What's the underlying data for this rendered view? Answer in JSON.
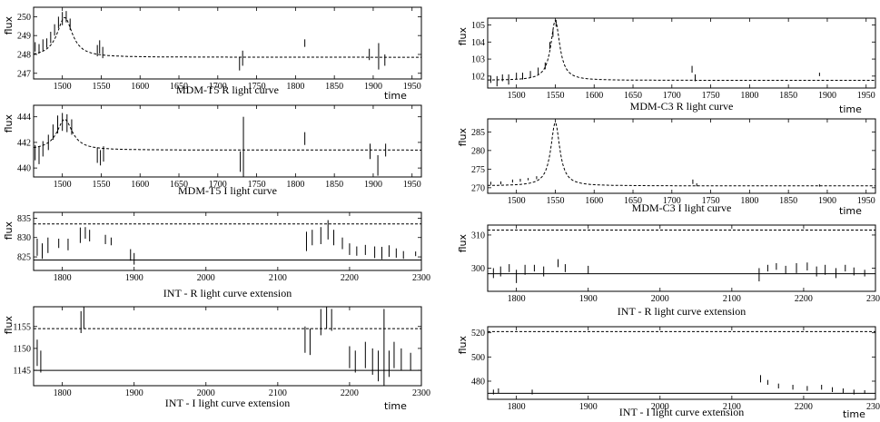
{
  "chart_data": [
    {
      "type": "line",
      "title": "MDM-T5 R light curve",
      "ylabel": "flux",
      "xlabel": "time",
      "xlim": [
        1463,
        1962
      ],
      "ylim": [
        246.7,
        250.5
      ],
      "xticks": [
        1500,
        1550,
        1600,
        1650,
        1700,
        1750,
        1800,
        1850,
        1900,
        1950
      ],
      "yticks": [
        247,
        248,
        249,
        250
      ],
      "model": {
        "kind": "peak",
        "t0": 1503,
        "base": 247.85,
        "amp": 2.1,
        "width": 12,
        "style": "dashed"
      },
      "observations": [
        {
          "x": 1465,
          "y": 248.4,
          "err": 0.25
        },
        {
          "x": 1470,
          "y": 248.3,
          "err": 0.25
        },
        {
          "x": 1475,
          "y": 248.5,
          "err": 0.3
        },
        {
          "x": 1480,
          "y": 248.6,
          "err": 0.25
        },
        {
          "x": 1485,
          "y": 248.9,
          "err": 0.3
        },
        {
          "x": 1490,
          "y": 249.3,
          "err": 0.3
        },
        {
          "x": 1495,
          "y": 249.7,
          "err": 0.3
        },
        {
          "x": 1500,
          "y": 249.9,
          "err": 0.35
        },
        {
          "x": 1505,
          "y": 250.0,
          "err": 0.3
        },
        {
          "x": 1510,
          "y": 249.6,
          "err": 0.3
        },
        {
          "x": 1545,
          "y": 248.2,
          "err": 0.3
        },
        {
          "x": 1548,
          "y": 248.4,
          "err": 0.35
        },
        {
          "x": 1552,
          "y": 248.1,
          "err": 0.3
        },
        {
          "x": 1728,
          "y": 247.5,
          "err": 0.35
        },
        {
          "x": 1732,
          "y": 247.8,
          "err": 0.4
        },
        {
          "x": 1812,
          "y": 248.6,
          "err": 0.2
        },
        {
          "x": 1895,
          "y": 248.0,
          "err": 0.3
        },
        {
          "x": 1907,
          "y": 247.9,
          "err": 0.7
        },
        {
          "x": 1915,
          "y": 247.7,
          "err": 0.3
        }
      ]
    },
    {
      "type": "line",
      "title": "MDM-T5 I light curve",
      "ylabel": "flux",
      "xlabel": "",
      "xlim": [
        1463,
        1962
      ],
      "ylim": [
        439.3,
        444.9
      ],
      "xticks": [
        1500,
        1550,
        1600,
        1650,
        1700,
        1750,
        1800,
        1850,
        1900,
        1950
      ],
      "yticks": [
        440,
        442,
        444
      ],
      "model": {
        "kind": "peak",
        "t0": 1503,
        "base": 441.4,
        "amp": 2.4,
        "width": 12,
        "style": "dashed"
      },
      "observations": [
        {
          "x": 1465,
          "y": 441.2,
          "err": 0.6
        },
        {
          "x": 1470,
          "y": 441.0,
          "err": 0.7
        },
        {
          "x": 1475,
          "y": 441.5,
          "err": 0.6
        },
        {
          "x": 1482,
          "y": 442.0,
          "err": 0.6
        },
        {
          "x": 1488,
          "y": 442.8,
          "err": 0.6
        },
        {
          "x": 1494,
          "y": 443.4,
          "err": 0.7
        },
        {
          "x": 1500,
          "y": 443.6,
          "err": 0.7
        },
        {
          "x": 1506,
          "y": 443.5,
          "err": 0.7
        },
        {
          "x": 1512,
          "y": 443.2,
          "err": 0.6
        },
        {
          "x": 1545,
          "y": 441.0,
          "err": 0.6
        },
        {
          "x": 1549,
          "y": 440.8,
          "err": 0.6
        },
        {
          "x": 1553,
          "y": 441.1,
          "err": 0.6
        },
        {
          "x": 1729,
          "y": 440.5,
          "err": 0.8
        },
        {
          "x": 1733,
          "y": 441.6,
          "err": 2.4
        },
        {
          "x": 1812,
          "y": 442.3,
          "err": 0.5
        },
        {
          "x": 1896,
          "y": 441.3,
          "err": 0.6
        },
        {
          "x": 1906,
          "y": 440.2,
          "err": 0.8
        },
        {
          "x": 1916,
          "y": 441.4,
          "err": 0.5
        }
      ]
    },
    {
      "type": "line",
      "title": "INT - R light curve extension",
      "ylabel": "flux",
      "xlabel": "",
      "xlim": [
        1760,
        2300
      ],
      "ylim": [
        821.5,
        836.5
      ],
      "xticks": [
        1800,
        1900,
        2000,
        2100,
        2200,
        2300
      ],
      "yticks": [
        825,
        830,
        835
      ],
      "reference_lines": [
        {
          "y": 833.5,
          "style": "dashed"
        },
        {
          "y": 824.2,
          "style": "solid"
        }
      ],
      "observations": [
        {
          "x": 1765,
          "y": 827.5,
          "err": 2.2
        },
        {
          "x": 1772,
          "y": 826.5,
          "err": 2.0
        },
        {
          "x": 1780,
          "y": 828.0,
          "err": 2.0
        },
        {
          "x": 1795,
          "y": 828.5,
          "err": 1.2
        },
        {
          "x": 1808,
          "y": 828.2,
          "err": 1.5
        },
        {
          "x": 1825,
          "y": 830.6,
          "err": 2.0
        },
        {
          "x": 1832,
          "y": 831.2,
          "err": 1.5
        },
        {
          "x": 1838,
          "y": 830.5,
          "err": 1.5
        },
        {
          "x": 1860,
          "y": 829.5,
          "err": 1.2
        },
        {
          "x": 1868,
          "y": 829.0,
          "err": 1.0
        },
        {
          "x": 1895,
          "y": 825.5,
          "err": 1.5
        },
        {
          "x": 1900,
          "y": 824.5,
          "err": 1.5
        },
        {
          "x": 2140,
          "y": 829.0,
          "err": 2.5
        },
        {
          "x": 2148,
          "y": 830.0,
          "err": 2.0
        },
        {
          "x": 2160,
          "y": 830.5,
          "err": 2.2
        },
        {
          "x": 2170,
          "y": 832.0,
          "err": 2.5
        },
        {
          "x": 2178,
          "y": 830.0,
          "err": 2.0
        },
        {
          "x": 2190,
          "y": 828.5,
          "err": 1.5
        },
        {
          "x": 2200,
          "y": 827.0,
          "err": 1.5
        },
        {
          "x": 2210,
          "y": 826.5,
          "err": 1.2
        },
        {
          "x": 2222,
          "y": 826.8,
          "err": 1.3
        },
        {
          "x": 2235,
          "y": 826.2,
          "err": 1.5
        },
        {
          "x": 2245,
          "y": 826.0,
          "err": 1.6
        },
        {
          "x": 2255,
          "y": 826.5,
          "err": 1.5
        },
        {
          "x": 2265,
          "y": 826.0,
          "err": 1.2
        },
        {
          "x": 2275,
          "y": 825.5,
          "err": 1.0
        },
        {
          "x": 2292,
          "y": 825.8,
          "err": 0.6
        }
      ]
    },
    {
      "type": "line",
      "title": "INT - I light curve extension",
      "ylabel": "flux",
      "xlabel": "time",
      "xlim": [
        1760,
        2300
      ],
      "ylim": [
        1141.5,
        1159.5
      ],
      "xticks": [
        1800,
        1900,
        2000,
        2100,
        2200,
        2300
      ],
      "yticks": [
        1145,
        1150,
        1155
      ],
      "reference_lines": [
        {
          "y": 1154.5,
          "style": "dashed"
        },
        {
          "y": 1145.0,
          "style": "solid"
        }
      ],
      "observations": [
        {
          "x": 1765,
          "y": 1149.0,
          "err": 3.0
        },
        {
          "x": 1770,
          "y": 1147.0,
          "err": 2.5
        },
        {
          "x": 1826,
          "y": 1156.0,
          "err": 2.5
        },
        {
          "x": 1830,
          "y": 1157.0,
          "err": 2.5
        },
        {
          "x": 2138,
          "y": 1152.0,
          "err": 3.0
        },
        {
          "x": 2145,
          "y": 1151.5,
          "err": 3.0
        },
        {
          "x": 2160,
          "y": 1156.0,
          "err": 3.0
        },
        {
          "x": 2168,
          "y": 1157.0,
          "err": 2.5
        },
        {
          "x": 2175,
          "y": 1156.5,
          "err": 2.5
        },
        {
          "x": 2200,
          "y": 1148.0,
          "err": 2.5
        },
        {
          "x": 2208,
          "y": 1147.0,
          "err": 2.5
        },
        {
          "x": 2222,
          "y": 1148.5,
          "err": 3.0
        },
        {
          "x": 2232,
          "y": 1147.0,
          "err": 3.0
        },
        {
          "x": 2240,
          "y": 1146.0,
          "err": 3.5
        },
        {
          "x": 2248,
          "y": 1150.0,
          "err": 9.0
        },
        {
          "x": 2255,
          "y": 1146.5,
          "err": 3.0
        },
        {
          "x": 2262,
          "y": 1148.5,
          "err": 3.0
        },
        {
          "x": 2272,
          "y": 1147.5,
          "err": 2.5
        },
        {
          "x": 2285,
          "y": 1147.0,
          "err": 2.0
        }
      ]
    },
    {
      "type": "line",
      "title": "MDM-C3 R light curve",
      "ylabel": "flux",
      "xlabel": "time",
      "xlim": [
        1463,
        1962
      ],
      "ylim": [
        101.3,
        105.4
      ],
      "xticks": [
        1500,
        1550,
        1600,
        1650,
        1700,
        1750,
        1800,
        1850,
        1900,
        1950
      ],
      "yticks": [
        102,
        103,
        104,
        105
      ],
      "model": {
        "kind": "peak",
        "t0": 1550,
        "base": 101.75,
        "amp": 3.5,
        "width": 7,
        "style": "dashed"
      },
      "observations": [
        {
          "x": 1467,
          "y": 101.8,
          "err": 0.2
        },
        {
          "x": 1475,
          "y": 101.7,
          "err": 0.3
        },
        {
          "x": 1482,
          "y": 101.9,
          "err": 0.2
        },
        {
          "x": 1490,
          "y": 101.8,
          "err": 0.3
        },
        {
          "x": 1500,
          "y": 102.0,
          "err": 0.2
        },
        {
          "x": 1508,
          "y": 102.0,
          "err": 0.2
        },
        {
          "x": 1518,
          "y": 102.1,
          "err": 0.2
        },
        {
          "x": 1528,
          "y": 102.3,
          "err": 0.2
        },
        {
          "x": 1537,
          "y": 102.6,
          "err": 0.2
        },
        {
          "x": 1543,
          "y": 103.8,
          "err": 0.2
        },
        {
          "x": 1547,
          "y": 104.5,
          "err": 0.2
        },
        {
          "x": 1551,
          "y": 105.1,
          "err": 0.2
        },
        {
          "x": 1726,
          "y": 102.4,
          "err": 0.2
        },
        {
          "x": 1730,
          "y": 101.9,
          "err": 0.2
        },
        {
          "x": 1890,
          "y": 102.1,
          "err": 0.1
        }
      ]
    },
    {
      "type": "line",
      "title": "MDM-C3 I light curve",
      "ylabel": "flux",
      "xlabel": "time",
      "xlim": [
        1463,
        1962
      ],
      "ylim": [
        268.5,
        288.5
      ],
      "xticks": [
        1500,
        1550,
        1600,
        1650,
        1700,
        1750,
        1800,
        1850,
        1900,
        1950
      ],
      "yticks": [
        270,
        275,
        280,
        285
      ],
      "model": {
        "kind": "peak",
        "t0": 1550,
        "base": 270.5,
        "amp": 17,
        "width": 7,
        "style": "dashed"
      },
      "observations": [
        {
          "x": 1467,
          "y": 271.2,
          "err": 0.4
        },
        {
          "x": 1480,
          "y": 271.3,
          "err": 0.4
        },
        {
          "x": 1495,
          "y": 271.8,
          "err": 0.4
        },
        {
          "x": 1505,
          "y": 272.0,
          "err": 0.4
        },
        {
          "x": 1515,
          "y": 272.3,
          "err": 0.3
        },
        {
          "x": 1526,
          "y": 272.7,
          "err": 0.4
        },
        {
          "x": 1727,
          "y": 271.6,
          "err": 0.6
        },
        {
          "x": 1732,
          "y": 270.8,
          "err": 0.4
        },
        {
          "x": 1890,
          "y": 270.6,
          "err": 0.3
        }
      ]
    },
    {
      "type": "line",
      "title": "INT - R light curve extension",
      "ylabel": "flux",
      "xlabel": "",
      "xlim": [
        1760,
        2300
      ],
      "ylim": [
        293,
        313
      ],
      "xticks": [
        1800,
        1900,
        2000,
        2100,
        2200,
        2300
      ],
      "yticks": [
        300,
        310
      ],
      "reference_lines": [
        {
          "y": 311.5,
          "style": "dashed"
        },
        {
          "y": 298.3,
          "style": "solid"
        }
      ],
      "observations": [
        {
          "x": 1768,
          "y": 298.5,
          "err": 1.5
        },
        {
          "x": 1778,
          "y": 299.0,
          "err": 1.5
        },
        {
          "x": 1790,
          "y": 300.0,
          "err": 1.2
        },
        {
          "x": 1800,
          "y": 297.5,
          "err": 2.0
        },
        {
          "x": 1812,
          "y": 299.5,
          "err": 1.5
        },
        {
          "x": 1825,
          "y": 300.0,
          "err": 1.0
        },
        {
          "x": 1838,
          "y": 299.0,
          "err": 1.5
        },
        {
          "x": 1858,
          "y": 301.5,
          "err": 1.2
        },
        {
          "x": 1868,
          "y": 300.0,
          "err": 1.2
        },
        {
          "x": 1900,
          "y": 299.5,
          "err": 1.2
        },
        {
          "x": 2138,
          "y": 298.0,
          "err": 2.0
        },
        {
          "x": 2150,
          "y": 300.0,
          "err": 1.0
        },
        {
          "x": 2162,
          "y": 300.5,
          "err": 1.0
        },
        {
          "x": 2175,
          "y": 299.5,
          "err": 1.2
        },
        {
          "x": 2190,
          "y": 300.0,
          "err": 1.5
        },
        {
          "x": 2205,
          "y": 300.5,
          "err": 1.2
        },
        {
          "x": 2218,
          "y": 299.0,
          "err": 1.5
        },
        {
          "x": 2230,
          "y": 299.5,
          "err": 1.5
        },
        {
          "x": 2245,
          "y": 298.5,
          "err": 1.5
        },
        {
          "x": 2258,
          "y": 300.0,
          "err": 1.0
        },
        {
          "x": 2270,
          "y": 299.0,
          "err": 1.2
        },
        {
          "x": 2285,
          "y": 298.5,
          "err": 1.0
        }
      ]
    },
    {
      "type": "line",
      "title": "INT - I light curve extension",
      "ylabel": "flux",
      "xlabel": "time",
      "xlim": [
        1760,
        2300
      ],
      "ylim": [
        465,
        525
      ],
      "xticks": [
        1800,
        1900,
        2000,
        2100,
        2200,
        2300
      ],
      "yticks": [
        480,
        500,
        520
      ],
      "reference_lines": [
        {
          "y": 521,
          "style": "dashed"
        },
        {
          "y": 470,
          "style": "solid"
        }
      ],
      "observations": [
        {
          "x": 1768,
          "y": 471,
          "err": 2
        },
        {
          "x": 1775,
          "y": 472,
          "err": 2
        },
        {
          "x": 1822,
          "y": 471,
          "err": 2
        },
        {
          "x": 2140,
          "y": 482,
          "err": 3
        },
        {
          "x": 2150,
          "y": 479,
          "err": 2
        },
        {
          "x": 2165,
          "y": 476,
          "err": 2
        },
        {
          "x": 2185,
          "y": 475,
          "err": 2
        },
        {
          "x": 2205,
          "y": 474,
          "err": 2
        },
        {
          "x": 2225,
          "y": 475,
          "err": 2
        },
        {
          "x": 2240,
          "y": 473,
          "err": 2
        },
        {
          "x": 2255,
          "y": 472,
          "err": 2
        },
        {
          "x": 2270,
          "y": 471,
          "err": 2
        },
        {
          "x": 2285,
          "y": 471,
          "err": 1.5
        }
      ]
    }
  ]
}
